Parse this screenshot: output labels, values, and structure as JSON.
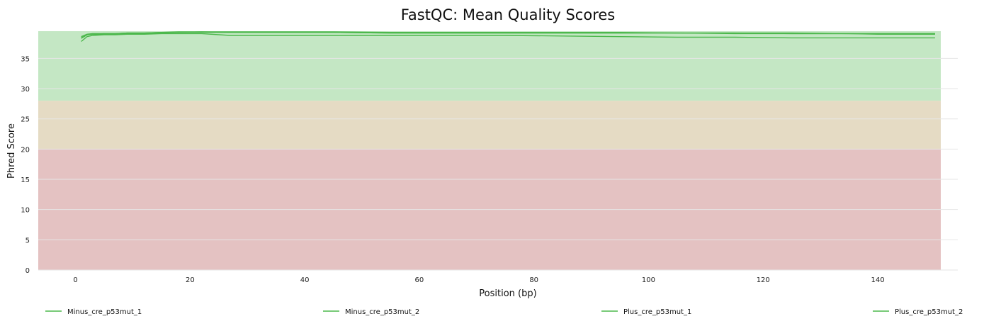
{
  "chart_data": {
    "type": "line",
    "title": "FastQC: Mean Quality Scores",
    "xlabel": "Position (bp)",
    "ylabel": "Phred Score",
    "xlim": [
      -6.5,
      151
    ],
    "ylim": [
      0,
      39.5
    ],
    "x_ticks": [
      0,
      20,
      40,
      60,
      80,
      100,
      120,
      140
    ],
    "y_ticks": [
      0,
      5,
      10,
      15,
      20,
      25,
      30,
      35
    ],
    "grid": true,
    "legend_position": "bottom",
    "bands": [
      {
        "from": 0,
        "to": 20,
        "color": "#e4c2c2"
      },
      {
        "from": 20,
        "to": 28,
        "color": "#e5dbc4"
      },
      {
        "from": 28,
        "to": 39.5,
        "color": "#c4e7c4"
      }
    ],
    "series": [
      {
        "name": "Minus_cre_p53mut_1",
        "color": "#4cb84c",
        "x": [
          1,
          2,
          3,
          5,
          7,
          9,
          12,
          15,
          18,
          22,
          27,
          35,
          45,
          55,
          65,
          75,
          85,
          95,
          105,
          115,
          125,
          135,
          140,
          145,
          150
        ],
        "y": [
          37.8,
          38.6,
          38.8,
          38.9,
          38.9,
          39.0,
          39.0,
          39.1,
          39.1,
          39.1,
          38.8,
          38.8,
          38.8,
          38.8,
          38.8,
          38.8,
          38.7,
          38.6,
          38.5,
          38.5,
          38.4,
          38.4,
          38.4,
          38.4,
          38.4
        ]
      },
      {
        "name": "Minus_cre_p53mut_2",
        "color": "#4cb84c",
        "x": [
          1,
          2,
          3,
          5,
          7,
          9,
          12,
          15,
          18,
          22,
          27,
          35,
          45,
          55,
          65,
          75,
          85,
          95,
          105,
          115,
          125,
          135,
          140,
          145,
          150
        ],
        "y": [
          38.6,
          39.0,
          39.1,
          39.1,
          39.1,
          39.2,
          39.2,
          39.3,
          39.3,
          39.4,
          39.3,
          39.3,
          39.3,
          39.2,
          39.2,
          39.2,
          39.2,
          39.2,
          39.2,
          39.2,
          39.1,
          39.1,
          39.1,
          39.1,
          39.1
        ]
      },
      {
        "name": "Plus_cre_p53mut_1",
        "color": "#4cb84c",
        "x": [
          1,
          2,
          3,
          5,
          7,
          9,
          12,
          15,
          18,
          22,
          27,
          35,
          45,
          55,
          65,
          75,
          85,
          95,
          105,
          115,
          125,
          135,
          140,
          145,
          150
        ],
        "y": [
          38.4,
          38.9,
          39.0,
          39.1,
          39.1,
          39.2,
          39.2,
          39.3,
          39.4,
          39.4,
          39.4,
          39.4,
          39.4,
          39.3,
          39.3,
          39.3,
          39.3,
          39.3,
          39.2,
          39.2,
          39.2,
          39.1,
          39.1,
          39.1,
          39.1
        ]
      },
      {
        "name": "Plus_cre_p53mut_2",
        "color": "#4cb84c",
        "x": [
          1,
          2,
          3,
          5,
          7,
          9,
          12,
          15,
          18,
          22,
          27,
          35,
          45,
          55,
          65,
          75,
          85,
          95,
          105,
          115,
          125,
          135,
          140,
          145,
          150
        ],
        "y": [
          38.3,
          38.9,
          39.0,
          39.0,
          39.0,
          39.1,
          39.1,
          39.2,
          39.3,
          39.3,
          39.3,
          39.3,
          39.3,
          39.2,
          39.2,
          39.2,
          39.2,
          39.2,
          39.2,
          39.1,
          39.1,
          39.1,
          39.0,
          39.0,
          39.0
        ]
      }
    ]
  }
}
